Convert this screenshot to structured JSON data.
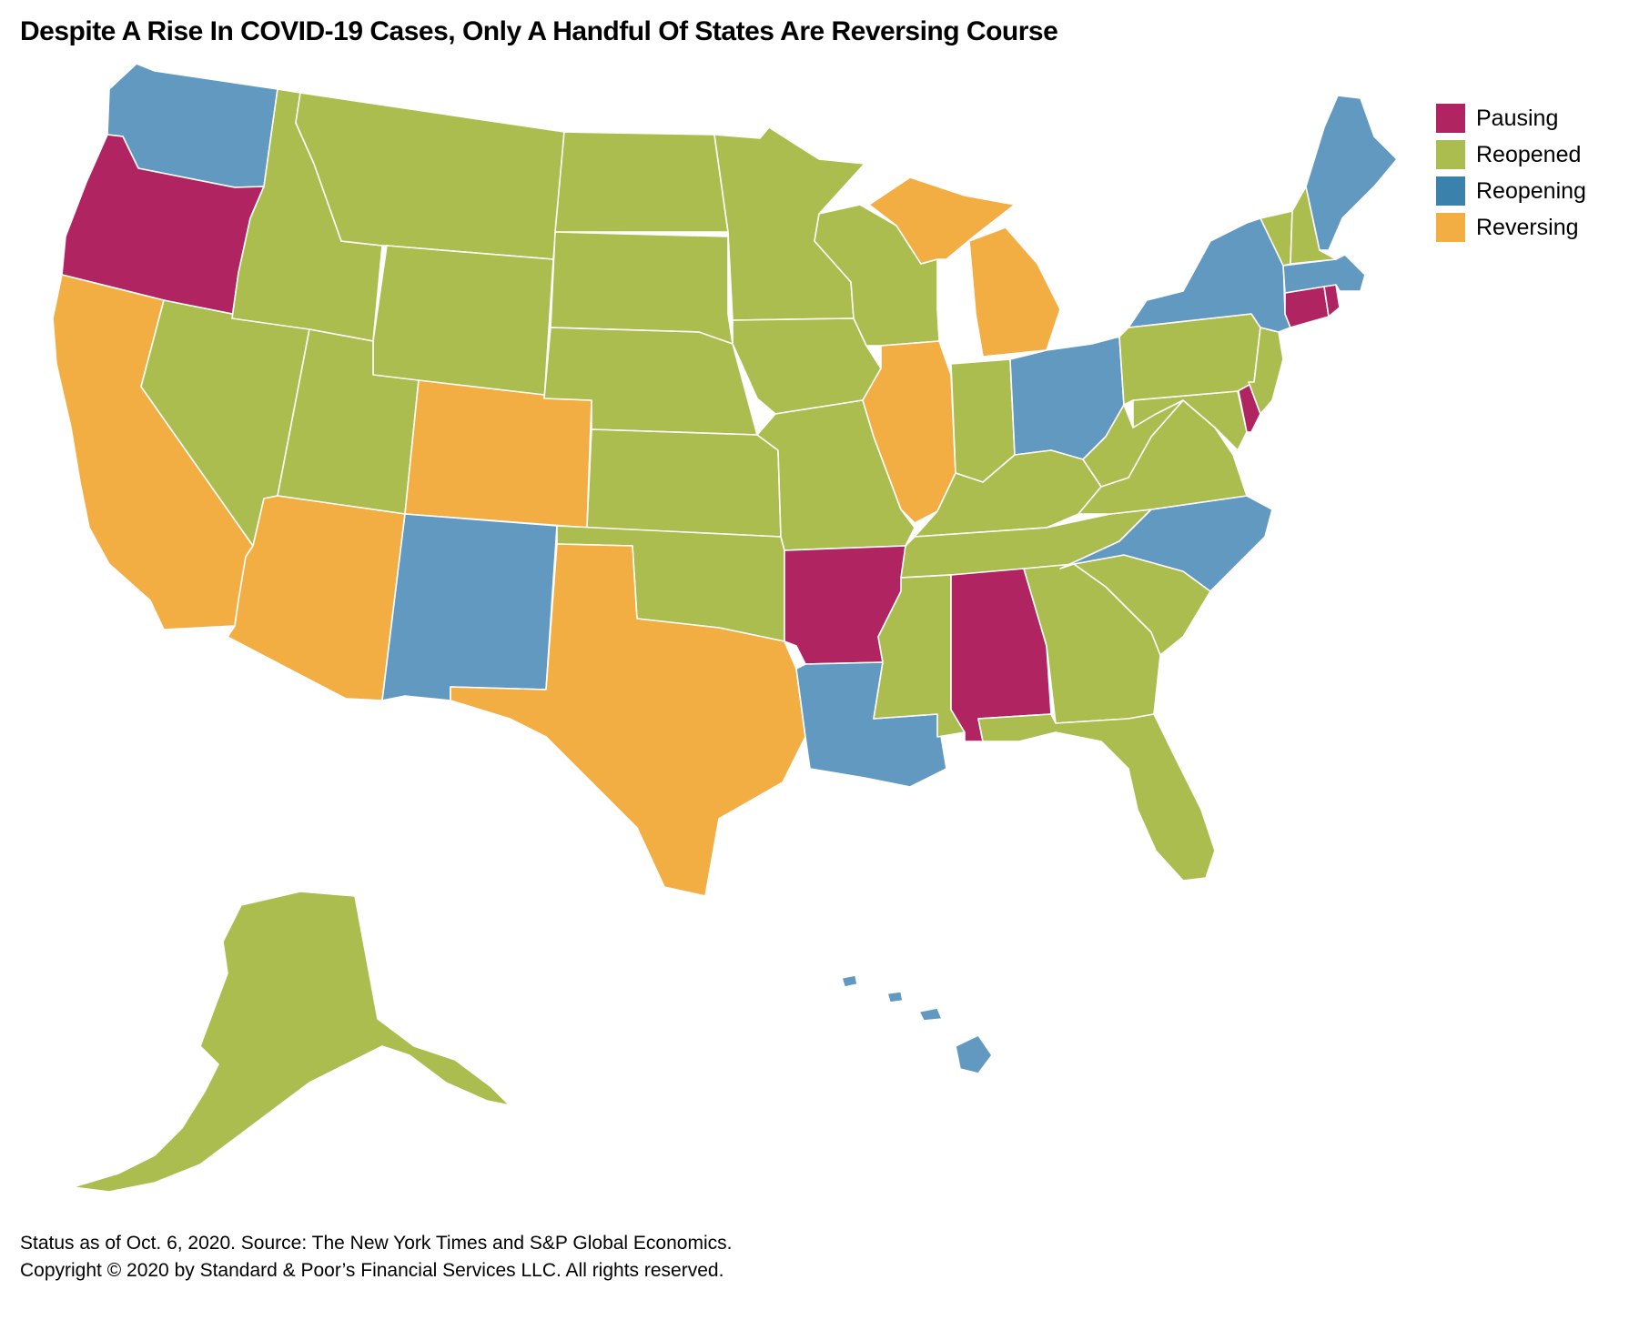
{
  "title": "Despite A Rise In COVID-19 Cases, Only A Handful Of States Are Reversing Course",
  "legend": [
    {
      "key": "pausing",
      "label": "Pausing",
      "color": "#b02462"
    },
    {
      "key": "reopened",
      "label": "Reopened",
      "color": "#aabd4e"
    },
    {
      "key": "reopening",
      "label": "Reopening",
      "color": "#3a82ac"
    },
    {
      "key": "reversing",
      "label": "Reversing",
      "color": "#f3ae43"
    }
  ],
  "map_colors": {
    "pausing": "#b02462",
    "reopened": "#aabd4e",
    "reopening": "#6199c0",
    "reversing": "#f3ae43"
  },
  "states": {
    "WA": "reopening",
    "OR": "pausing",
    "CA": "reversing",
    "NV": "reopened",
    "ID": "reopened",
    "MT": "reopened",
    "WY": "reopened",
    "UT": "reopened",
    "AZ": "reversing",
    "CO": "reversing",
    "NM": "reopening",
    "ND": "reopened",
    "SD": "reopened",
    "NE": "reopened",
    "KS": "reopened",
    "OK": "reopened",
    "TX": "reversing",
    "MN": "reopened",
    "IA": "reopened",
    "MO": "reopened",
    "AR": "pausing",
    "LA": "reopening",
    "WI": "reopened",
    "IL": "reversing",
    "MI": "reversing",
    "IN": "reopened",
    "OH": "reopening",
    "KY": "reopened",
    "TN": "reopened",
    "MS": "reopened",
    "AL": "pausing",
    "GA": "reopened",
    "FL": "reopened",
    "SC": "reopened",
    "NC": "reopening",
    "VA": "reopened",
    "WV": "reopened",
    "MD": "reopened",
    "DE": "pausing",
    "PA": "reopened",
    "NJ": "reopened",
    "NY": "reopening",
    "CT": "pausing",
    "RI": "pausing",
    "MA": "reopening",
    "VT": "reopened",
    "NH": "reopened",
    "ME": "reopening",
    "AK": "reopened",
    "HI": "reopening"
  },
  "footer": {
    "line1": "Status as of Oct. 6, 2020. Source: The New York Times and S&P Global Economics.",
    "line2": "Copyright © 2020 by Standard & Poor’s Financial Services LLC. All rights reserved."
  }
}
